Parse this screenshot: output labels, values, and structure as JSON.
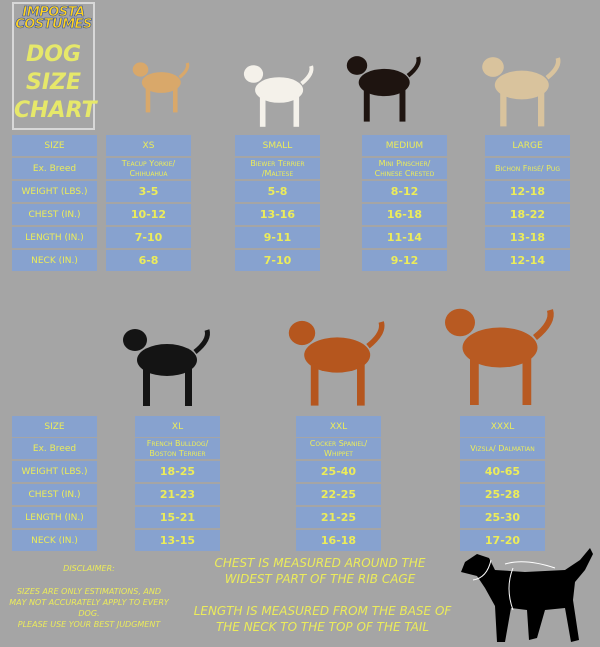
{
  "logo": {
    "brand_line1": "IMPOSTA",
    "brand_line2": "COSTUMES",
    "title": [
      "DOG",
      "SIZE",
      "CHART"
    ]
  },
  "row_labels": [
    "SIZE",
    "Ex. Breed",
    "WEIGHT (LBS.)",
    "CHEST (IN.)",
    "LENGTH (IN.)",
    "NECK (IN.)"
  ],
  "top_sizes": [
    {
      "size": "XS",
      "breed": "Teacup Yorkie/ Chihuahua",
      "weight": "3-5",
      "chest": "10-12",
      "length": "7-10",
      "neck": "6-8",
      "dog_color": "#d9a86a"
    },
    {
      "size": "SMALL",
      "breed": "Biewer Terrier /Maltese",
      "weight": "5-8",
      "chest": "13-16",
      "length": "9-11",
      "neck": "7-10",
      "dog_color": "#f4f1ea"
    },
    {
      "size": "MEDIUM",
      "breed": "Mini Pinscher/ Chinese Crested",
      "weight": "8-12",
      "chest": "16-18",
      "length": "11-14",
      "neck": "9-12",
      "dog_color": "#1e1410"
    },
    {
      "size": "LARGE",
      "breed": "Bichon Frisé/ Pug",
      "weight": "12-18",
      "chest": "18-22",
      "length": "13-18",
      "neck": "12-14",
      "dog_color": "#d9c39d"
    }
  ],
  "bottom_sizes": [
    {
      "size": "XL",
      "breed": "French Bulldog/ Boston Terrier",
      "weight": "18-25",
      "chest": "21-23",
      "length": "15-21",
      "neck": "13-15",
      "dog_color": "#141414"
    },
    {
      "size": "XXL",
      "breed": "Cocker Spaniel/ Whippet",
      "weight": "25-40",
      "chest": "22-25",
      "length": "21-25",
      "neck": "16-18",
      "dog_color": "#b5561e"
    },
    {
      "size": "XXXL",
      "breed": "Vizsla/ Dalmatian",
      "weight": "40-65",
      "chest": "25-28",
      "length": "25-30",
      "neck": "17-20",
      "dog_color": "#b85a22"
    }
  ],
  "disclaimer": {
    "heading": "DISCLAIMER:",
    "body": "SIZES ARE ONLY ESTIMATIONS, AND MAY NOT ACCURATELY APPLY TO EVERY DOG.",
    "footer": "PLEASE USE YOUR BEST JUDGMENT"
  },
  "notes": {
    "chest": "CHEST IS MEASURED AROUND THE WIDEST PART OF THE RIB CAGE",
    "length": "LENGTH IS MEASURED FROM THE BASE OF THE NECK TO THE TOP OF THE TAIL"
  }
}
